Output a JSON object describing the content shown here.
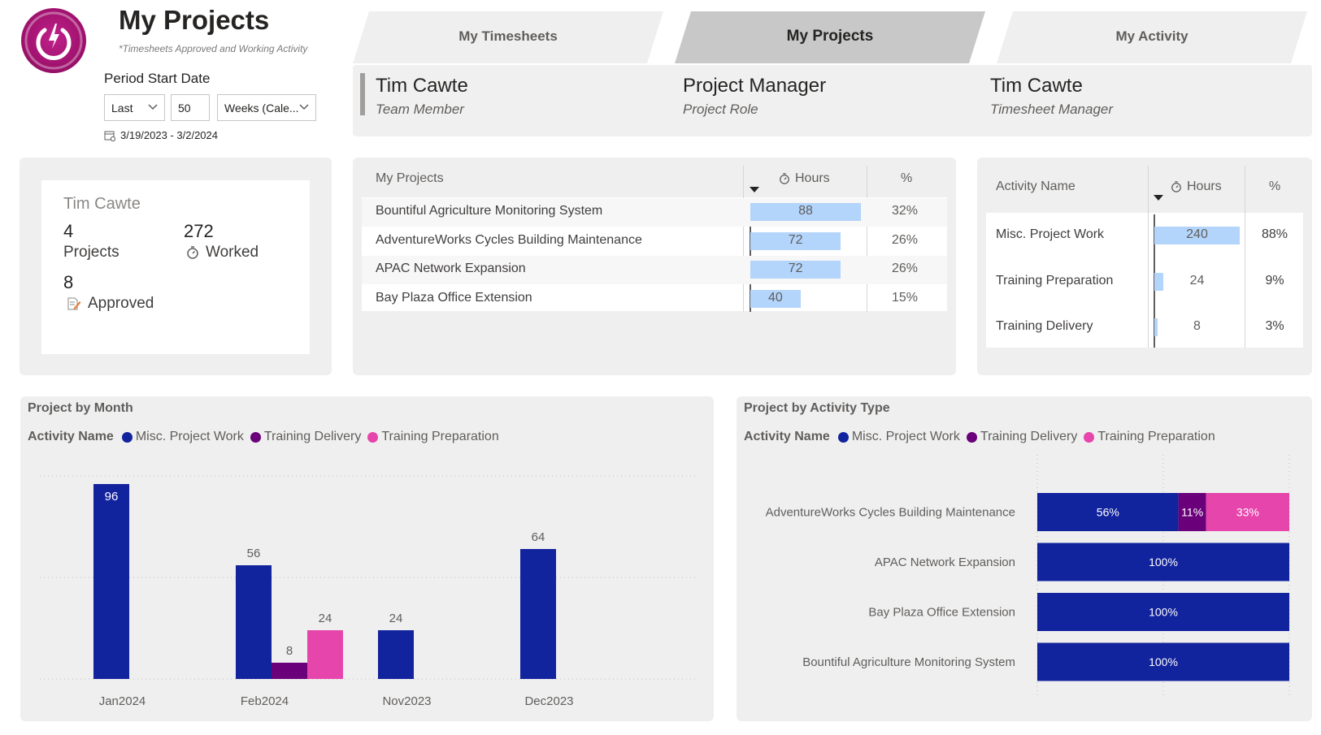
{
  "header": {
    "title": "My Projects",
    "subtitle": "*Timesheets Approved and Working Activity",
    "period_label": "Period Start Date",
    "filter_relative": "Last",
    "filter_number": "50",
    "filter_unit": "Weeks (Cale...",
    "date_range": "3/19/2023 - 3/2/2024"
  },
  "tabs": [
    {
      "label": "My Timesheets",
      "active": false
    },
    {
      "label": "My Projects",
      "active": true
    },
    {
      "label": "My Activity",
      "active": false
    }
  ],
  "info": [
    {
      "name": "Tim Cawte",
      "role": "Team Member"
    },
    {
      "name": "Project Manager",
      "role": "Project Role"
    },
    {
      "name": "Tim Cawte",
      "role": "Timesheet Manager"
    }
  ],
  "card": {
    "name": "Tim Cawte",
    "projects_value": "4",
    "projects_label": "Projects",
    "worked_value": "272",
    "worked_label": "Worked",
    "approved_value": "8",
    "approved_label": "Approved"
  },
  "projects_table": {
    "headers": {
      "name": "My Projects",
      "hours": "Hours",
      "pct": "%"
    },
    "rows": [
      {
        "name": "Bountiful Agriculture Monitoring System",
        "hours": 88,
        "pct": "32%"
      },
      {
        "name": "AdventureWorks Cycles Building Maintenance",
        "hours": 72,
        "pct": "26%"
      },
      {
        "name": "APAC Network Expansion",
        "hours": 72,
        "pct": "26%"
      },
      {
        "name": "Bay Plaza Office Extension",
        "hours": 40,
        "pct": "15%"
      }
    ]
  },
  "activity_table": {
    "headers": {
      "name": "Activity Name",
      "hours": "Hours",
      "pct": "%"
    },
    "rows": [
      {
        "name": "Misc. Project Work",
        "hours": 240,
        "pct": "88%"
      },
      {
        "name": "Training Preparation",
        "hours": 24,
        "pct": "9%"
      },
      {
        "name": "Training Delivery",
        "hours": 8,
        "pct": "3%"
      }
    ]
  },
  "colors": {
    "misc": "#12239e",
    "delivery": "#6b007b",
    "preparation": "#e645ab",
    "table_bar": "#b3d4fb",
    "brand": "#a0126e"
  },
  "chart_data": [
    {
      "type": "bar",
      "title": "Project by Month",
      "legend_title": "Activity Name",
      "categories": [
        "Jan2024",
        "Feb2024",
        "Nov2023",
        "Dec2023"
      ],
      "series": [
        {
          "name": "Misc. Project Work",
          "values": [
            96,
            56,
            24,
            64
          ]
        },
        {
          "name": "Training Delivery",
          "values": [
            null,
            8,
            null,
            null
          ]
        },
        {
          "name": "Training Preparation",
          "values": [
            null,
            24,
            null,
            null
          ]
        }
      ],
      "ylim": [
        0,
        100
      ],
      "grid": true,
      "legend_position": "top-left"
    },
    {
      "type": "bar",
      "orientation": "horizontal-stacked-100",
      "title": "Project by Activity Type",
      "legend_title": "Activity Name",
      "categories": [
        "AdventureWorks Cycles Building Maintenance",
        "APAC Network Expansion",
        "Bay Plaza Office Extension",
        "Bountiful Agriculture Monitoring System"
      ],
      "series": [
        {
          "name": "Misc. Project Work",
          "values": [
            56,
            100,
            100,
            100
          ]
        },
        {
          "name": "Training Delivery",
          "values": [
            11,
            0,
            0,
            0
          ]
        },
        {
          "name": "Training Preparation",
          "values": [
            33,
            0,
            0,
            0
          ]
        }
      ],
      "legend_position": "top-left"
    }
  ]
}
